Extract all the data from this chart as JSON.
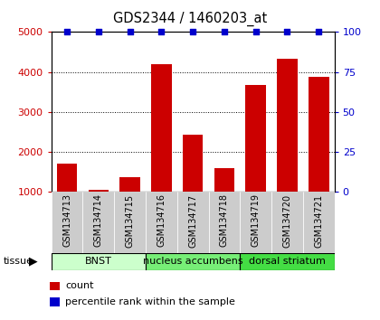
{
  "title": "GDS2344 / 1460203_at",
  "samples": [
    "GSM134713",
    "GSM134714",
    "GSM134715",
    "GSM134716",
    "GSM134717",
    "GSM134718",
    "GSM134719",
    "GSM134720",
    "GSM134721"
  ],
  "counts": [
    1700,
    1050,
    1380,
    4200,
    2430,
    1600,
    3680,
    4320,
    3880
  ],
  "percentile_ranks": [
    100,
    100,
    100,
    100,
    100,
    100,
    100,
    100,
    100
  ],
  "tissues": [
    {
      "label": "BNST",
      "start": 0,
      "end": 3,
      "color": "#ccffcc"
    },
    {
      "label": "nucleus accumbens",
      "start": 3,
      "end": 6,
      "color": "#77ee77"
    },
    {
      "label": "dorsal striatum",
      "start": 6,
      "end": 9,
      "color": "#44dd44"
    }
  ],
  "ylim_left": [
    1000,
    5000
  ],
  "ylim_right": [
    0,
    100
  ],
  "yticks_left": [
    1000,
    2000,
    3000,
    4000,
    5000
  ],
  "yticks_right": [
    0,
    25,
    50,
    75,
    100
  ],
  "bar_color": "#cc0000",
  "dot_color": "#0000cc",
  "bar_width": 0.65,
  "left_tick_color": "#cc0000",
  "right_tick_color": "#0000cc",
  "sample_bg": "#cccccc",
  "legend_count_color": "#cc0000",
  "legend_dot_color": "#0000cc"
}
